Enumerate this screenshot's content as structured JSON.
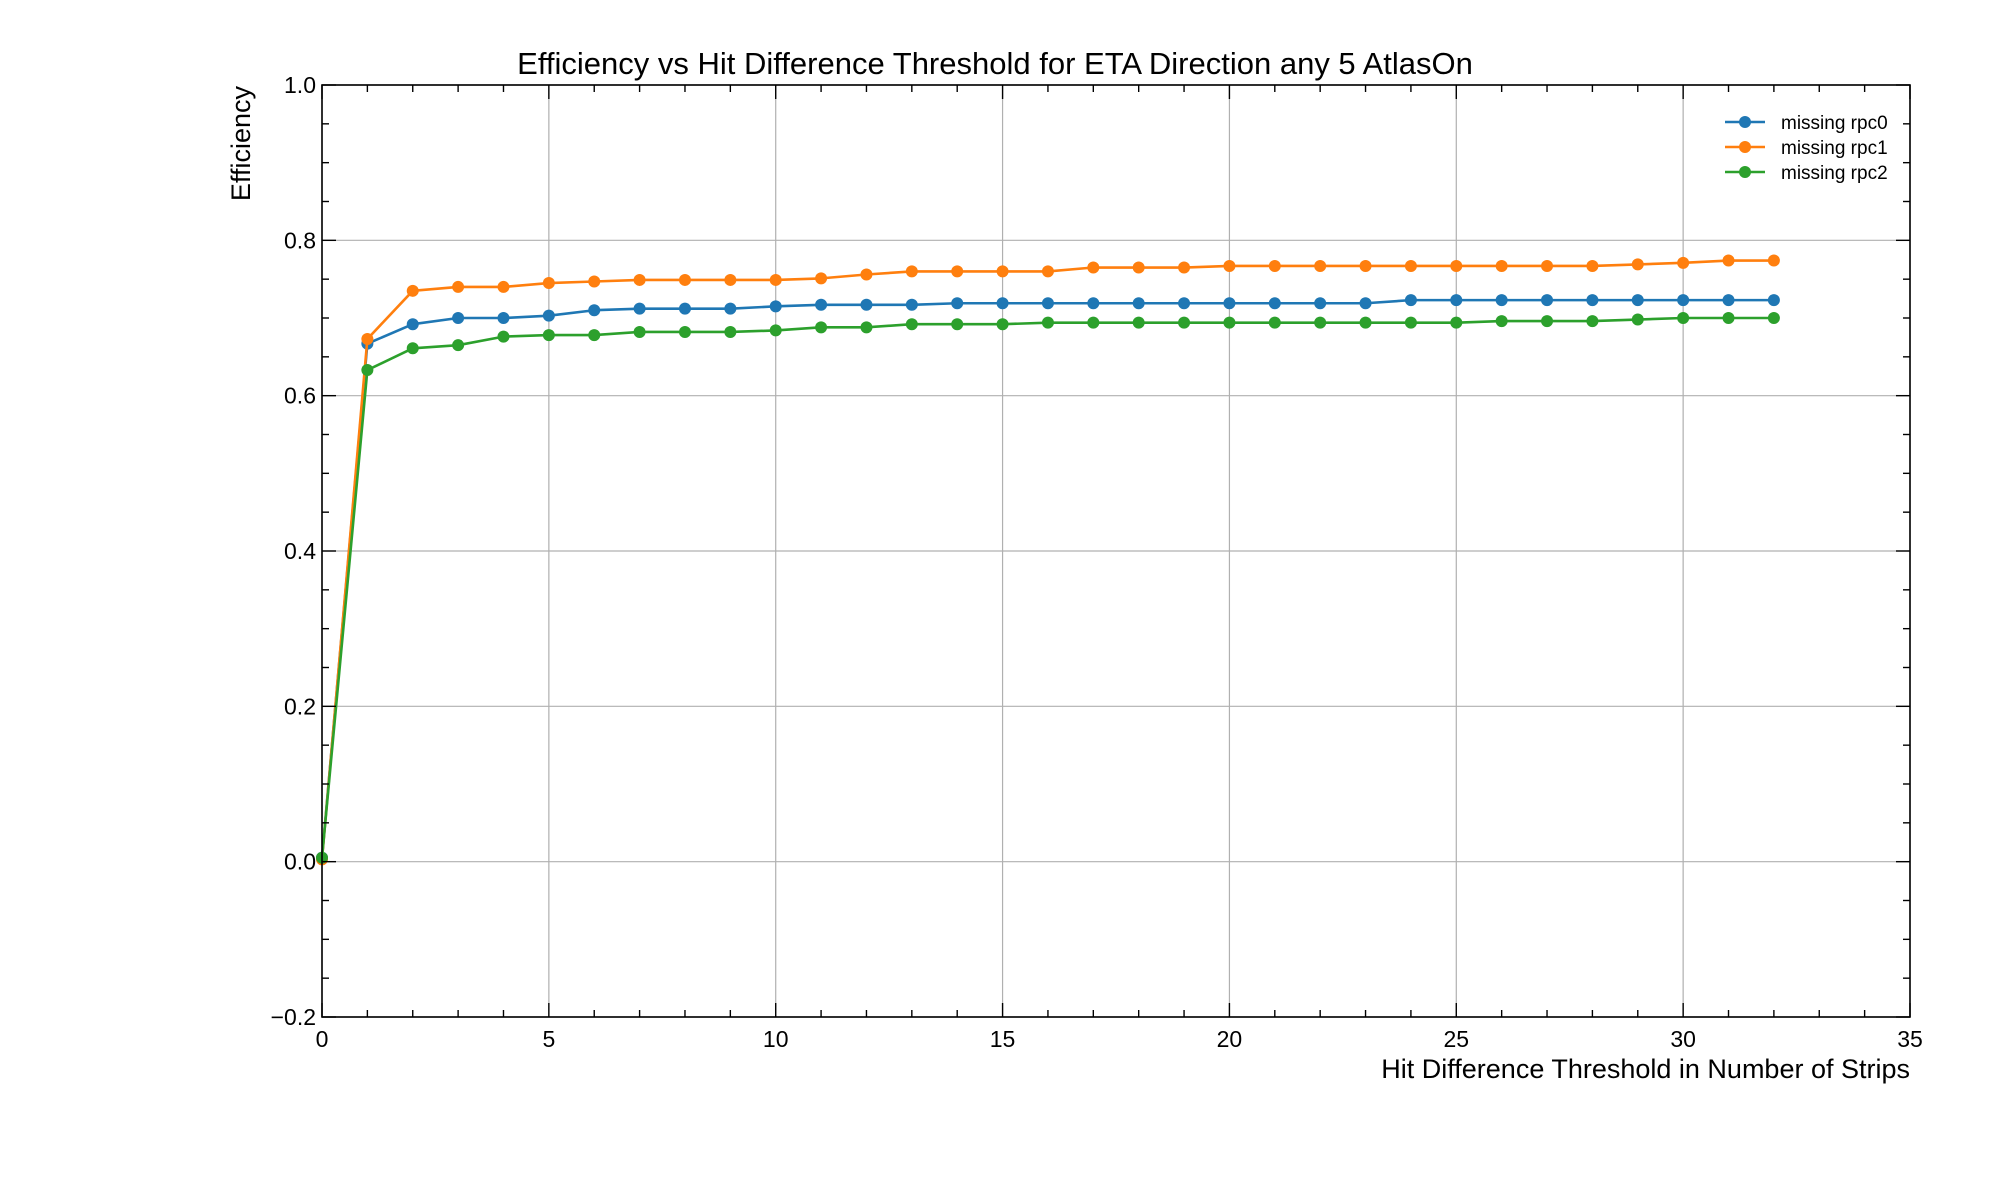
{
  "chart_data": {
    "type": "line",
    "title": "Efficiency vs Hit Difference Threshold for ETA Direction any 5 AtlasOn",
    "xlabel": "Hit Difference Threshold in Number of Strips",
    "ylabel": "Efficiency",
    "xlim": [
      0,
      35
    ],
    "ylim": [
      -0.2,
      1.0
    ],
    "x_ticks": [
      0,
      5,
      10,
      15,
      20,
      25,
      30,
      35
    ],
    "y_ticks": [
      -0.2,
      0.0,
      0.2,
      0.4,
      0.6,
      0.8,
      1.0
    ],
    "x_tick_labels": [
      "0",
      "5",
      "10",
      "15",
      "20",
      "25",
      "30",
      "35"
    ],
    "y_tick_labels": [
      "−0.2",
      "0.0",
      "0.2",
      "0.4",
      "0.6",
      "0.8",
      "1.0"
    ],
    "grid": true,
    "legend_position": "top-right",
    "x": [
      0,
      1,
      2,
      3,
      4,
      5,
      6,
      7,
      8,
      9,
      10,
      11,
      12,
      13,
      14,
      15,
      16,
      17,
      18,
      19,
      20,
      21,
      22,
      23,
      24,
      25,
      26,
      27,
      28,
      29,
      30,
      31,
      32
    ],
    "series": [
      {
        "name": "missing rpc0",
        "color": "#1f77b4",
        "values": [
          0.005,
          0.667,
          0.692,
          0.7,
          0.7,
          0.703,
          0.71,
          0.712,
          0.712,
          0.712,
          0.715,
          0.717,
          0.717,
          0.717,
          0.719,
          0.719,
          0.719,
          0.719,
          0.719,
          0.719,
          0.719,
          0.719,
          0.719,
          0.719,
          0.723,
          0.723,
          0.723,
          0.723,
          0.723,
          0.723,
          0.723,
          0.723,
          0.723
        ]
      },
      {
        "name": "missing rpc1",
        "color": "#ff7f0e",
        "values": [
          0.003,
          0.673,
          0.735,
          0.74,
          0.74,
          0.745,
          0.747,
          0.749,
          0.749,
          0.749,
          0.749,
          0.751,
          0.756,
          0.76,
          0.76,
          0.76,
          0.76,
          0.765,
          0.765,
          0.765,
          0.767,
          0.767,
          0.767,
          0.767,
          0.767,
          0.767,
          0.767,
          0.767,
          0.767,
          0.769,
          0.771,
          0.774,
          0.774
        ]
      },
      {
        "name": "missing rpc2",
        "color": "#2ca02c",
        "values": [
          0.005,
          0.633,
          0.661,
          0.665,
          0.676,
          0.678,
          0.678,
          0.682,
          0.682,
          0.682,
          0.684,
          0.688,
          0.688,
          0.692,
          0.692,
          0.692,
          0.694,
          0.694,
          0.694,
          0.694,
          0.694,
          0.694,
          0.694,
          0.694,
          0.694,
          0.694,
          0.696,
          0.696,
          0.696,
          0.698,
          0.7,
          0.7,
          0.7
        ]
      }
    ]
  }
}
